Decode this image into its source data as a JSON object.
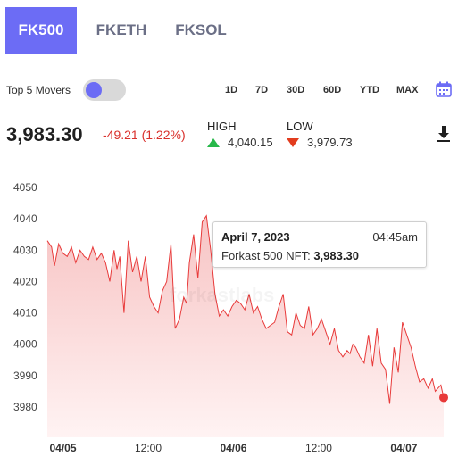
{
  "tabs": [
    {
      "label": "FK500",
      "active": true
    },
    {
      "label": "FKETH",
      "active": false
    },
    {
      "label": "FKSOL",
      "active": false
    }
  ],
  "controls": {
    "movers_label": "Top 5 Movers",
    "movers_toggle_on": false,
    "ranges": [
      "1D",
      "7D",
      "30D",
      "60D",
      "YTD",
      "MAX"
    ],
    "calendar_icon": "calendar-icon",
    "accent": "#6c6cf5"
  },
  "summary": {
    "price": "3,983.30",
    "change": "-49.21 (1.22%)",
    "high_label": "HIGH",
    "high_value": "4,040.15",
    "low_label": "LOW",
    "low_value": "3,979.73",
    "download_icon": "download-icon",
    "up_color": "#27b84a",
    "down_color": "#e23c1e",
    "change_color": "#d9302c"
  },
  "tooltip": {
    "date": "April 7, 2023",
    "time": "04:45am",
    "label": "Forkast 500 NFT:",
    "value": "3,983.30"
  },
  "watermark": "forkastlabs",
  "chart_data": {
    "type": "area",
    "title": "",
    "ylim": [
      3975,
      4052
    ],
    "yticks": [
      3980,
      3990,
      4000,
      4010,
      4020,
      4030,
      4040,
      4050
    ],
    "xticks": [
      "04/05",
      "12:00",
      "04/06",
      "12:00",
      "04/07"
    ],
    "xticks_bold": [
      true,
      false,
      true,
      false,
      true
    ],
    "x_range_hours": [
      -2.2,
      53.6
    ],
    "xtick_hours": [
      0,
      12,
      24,
      36,
      48
    ],
    "line_color": "#e83a3a",
    "fill_color": "#fbdada",
    "x_hours": [
      -2.2,
      -1.6,
      -1.2,
      -0.6,
      0.0,
      0.6,
      1.2,
      1.8,
      2.4,
      3.0,
      3.6,
      4.2,
      4.8,
      5.4,
      6.0,
      6.6,
      7.2,
      7.6,
      8.0,
      8.6,
      9.2,
      9.8,
      10.4,
      11.0,
      11.6,
      12.2,
      12.8,
      13.4,
      14.0,
      14.6,
      15.2,
      15.8,
      16.4,
      17.0,
      17.4,
      17.8,
      18.4,
      19.0,
      19.6,
      20.2,
      20.8,
      21.4,
      22.0,
      22.6,
      23.2,
      23.8,
      24.4,
      25.0,
      25.6,
      26.2,
      26.8,
      27.4,
      28.0,
      28.6,
      29.2,
      29.8,
      30.4,
      31.0,
      31.6,
      32.2,
      32.8,
      33.4,
      34.0,
      34.6,
      35.2,
      35.8,
      36.4,
      37.0,
      37.6,
      38.2,
      38.8,
      39.4,
      40.0,
      40.4,
      40.8,
      41.2,
      41.8,
      42.4,
      43.0,
      43.6,
      44.2,
      44.8,
      45.4,
      46.0,
      46.6,
      47.2,
      47.8,
      48.4,
      49.0,
      49.6,
      50.2,
      50.8,
      51.4,
      52.0,
      52.4,
      52.8,
      53.2,
      53.6
    ],
    "y": [
      4033,
      4031,
      4025,
      4032,
      4029,
      4028,
      4031,
      4026,
      4030,
      4028,
      4027,
      4031,
      4027,
      4029,
      4026,
      4020,
      4030,
      4024,
      4028,
      4010,
      4033,
      4023,
      4028,
      4020,
      4028,
      4015,
      4012,
      4010,
      4017,
      4020,
      4032,
      4005,
      4008,
      4015,
      4013,
      4026,
      4035,
      4021,
      4039,
      4041,
      4030,
      4016,
      4009,
      4011,
      4009,
      4012,
      4014,
      4013,
      4011,
      4016,
      4010,
      4012,
      4008,
      4005,
      4006,
      4007,
      4012,
      4016,
      4004,
      4003,
      4010,
      4006,
      4005,
      4012,
      4003,
      4005,
      4008,
      4004,
      4000,
      4005,
      3998,
      3996,
      3998,
      3997,
      4000,
      3999,
      3996,
      3994,
      4003,
      3993,
      4005,
      3994,
      3992,
      3981,
      3999,
      3991,
      4007,
      4003,
      3999,
      3993,
      3988,
      3989,
      3986,
      3989,
      3985,
      3986,
      3987,
      3983
    ]
  }
}
